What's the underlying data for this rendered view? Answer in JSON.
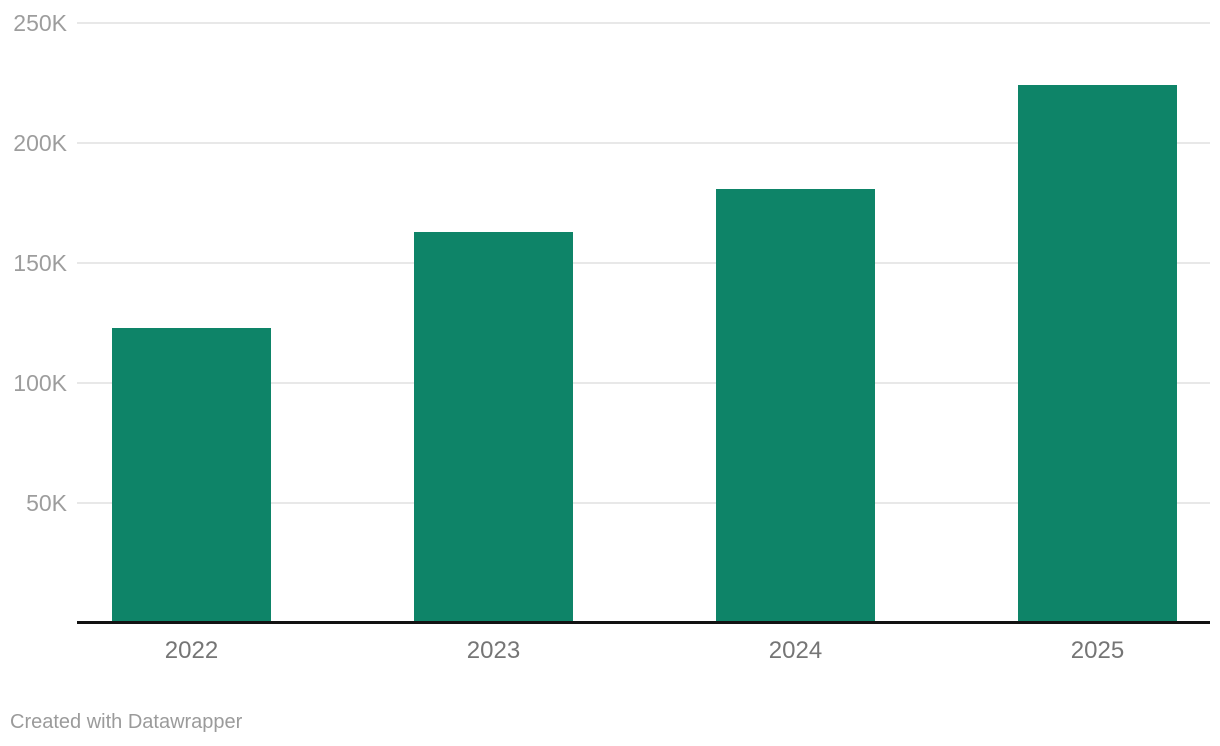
{
  "chart": {
    "footer": "Created with Datawrapper"
  },
  "chart_data": {
    "type": "bar",
    "categories": [
      "2022",
      "2023",
      "2024",
      "2025"
    ],
    "values": [
      123000,
      163000,
      181000,
      224000
    ],
    "series": [
      {
        "name": "value",
        "values": [
          123000,
          163000,
          181000,
          224000
        ]
      }
    ],
    "title": "",
    "xlabel": "",
    "ylabel": "",
    "ylim": [
      0,
      250000
    ],
    "yticks": [
      {
        "value": 50000,
        "label": "50K"
      },
      {
        "value": 100000,
        "label": "100K"
      },
      {
        "value": 150000,
        "label": "150K"
      },
      {
        "value": 200000,
        "label": "200K"
      },
      {
        "value": 250000,
        "label": "250K"
      }
    ],
    "grid": true,
    "legend_position": "none",
    "orientation": "vertical",
    "colors": {
      "bar": "#0e8468",
      "gridline": "#e8e8e8",
      "axis_line": "#121212",
      "ytick_label": "#9d9d9d",
      "xtick_label": "#757575",
      "footer_text": "#9b9b9b",
      "background": "#ffffff"
    }
  }
}
